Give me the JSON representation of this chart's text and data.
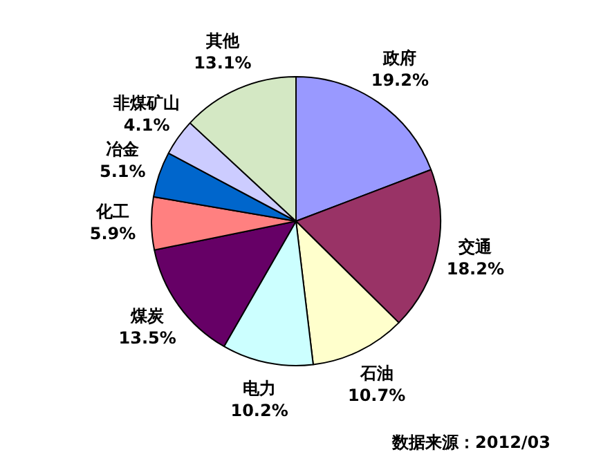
{
  "chart_data": {
    "type": "pie",
    "categories": [
      "政府",
      "交通",
      "石油",
      "电力",
      "煤炭",
      "化工",
      "冶金",
      "非煤矿山",
      "其他"
    ],
    "values": [
      19.2,
      18.2,
      10.7,
      10.2,
      13.5,
      5.9,
      5.1,
      4.1,
      13.1
    ],
    "colors": [
      "#9999ff",
      "#993366",
      "#ffffcc",
      "#ccffff",
      "#660066",
      "#ff8080",
      "#0066cc",
      "#ccccff",
      "#d4e8c4"
    ],
    "value_labels": [
      "19.2%",
      "18.2%",
      "10.7%",
      "10.2%",
      "13.5%",
      "5.9%",
      "5.1%",
      "4.1%",
      "13.1%"
    ],
    "legend": false,
    "annotations": [
      "数据来源：2012/03"
    ]
  }
}
